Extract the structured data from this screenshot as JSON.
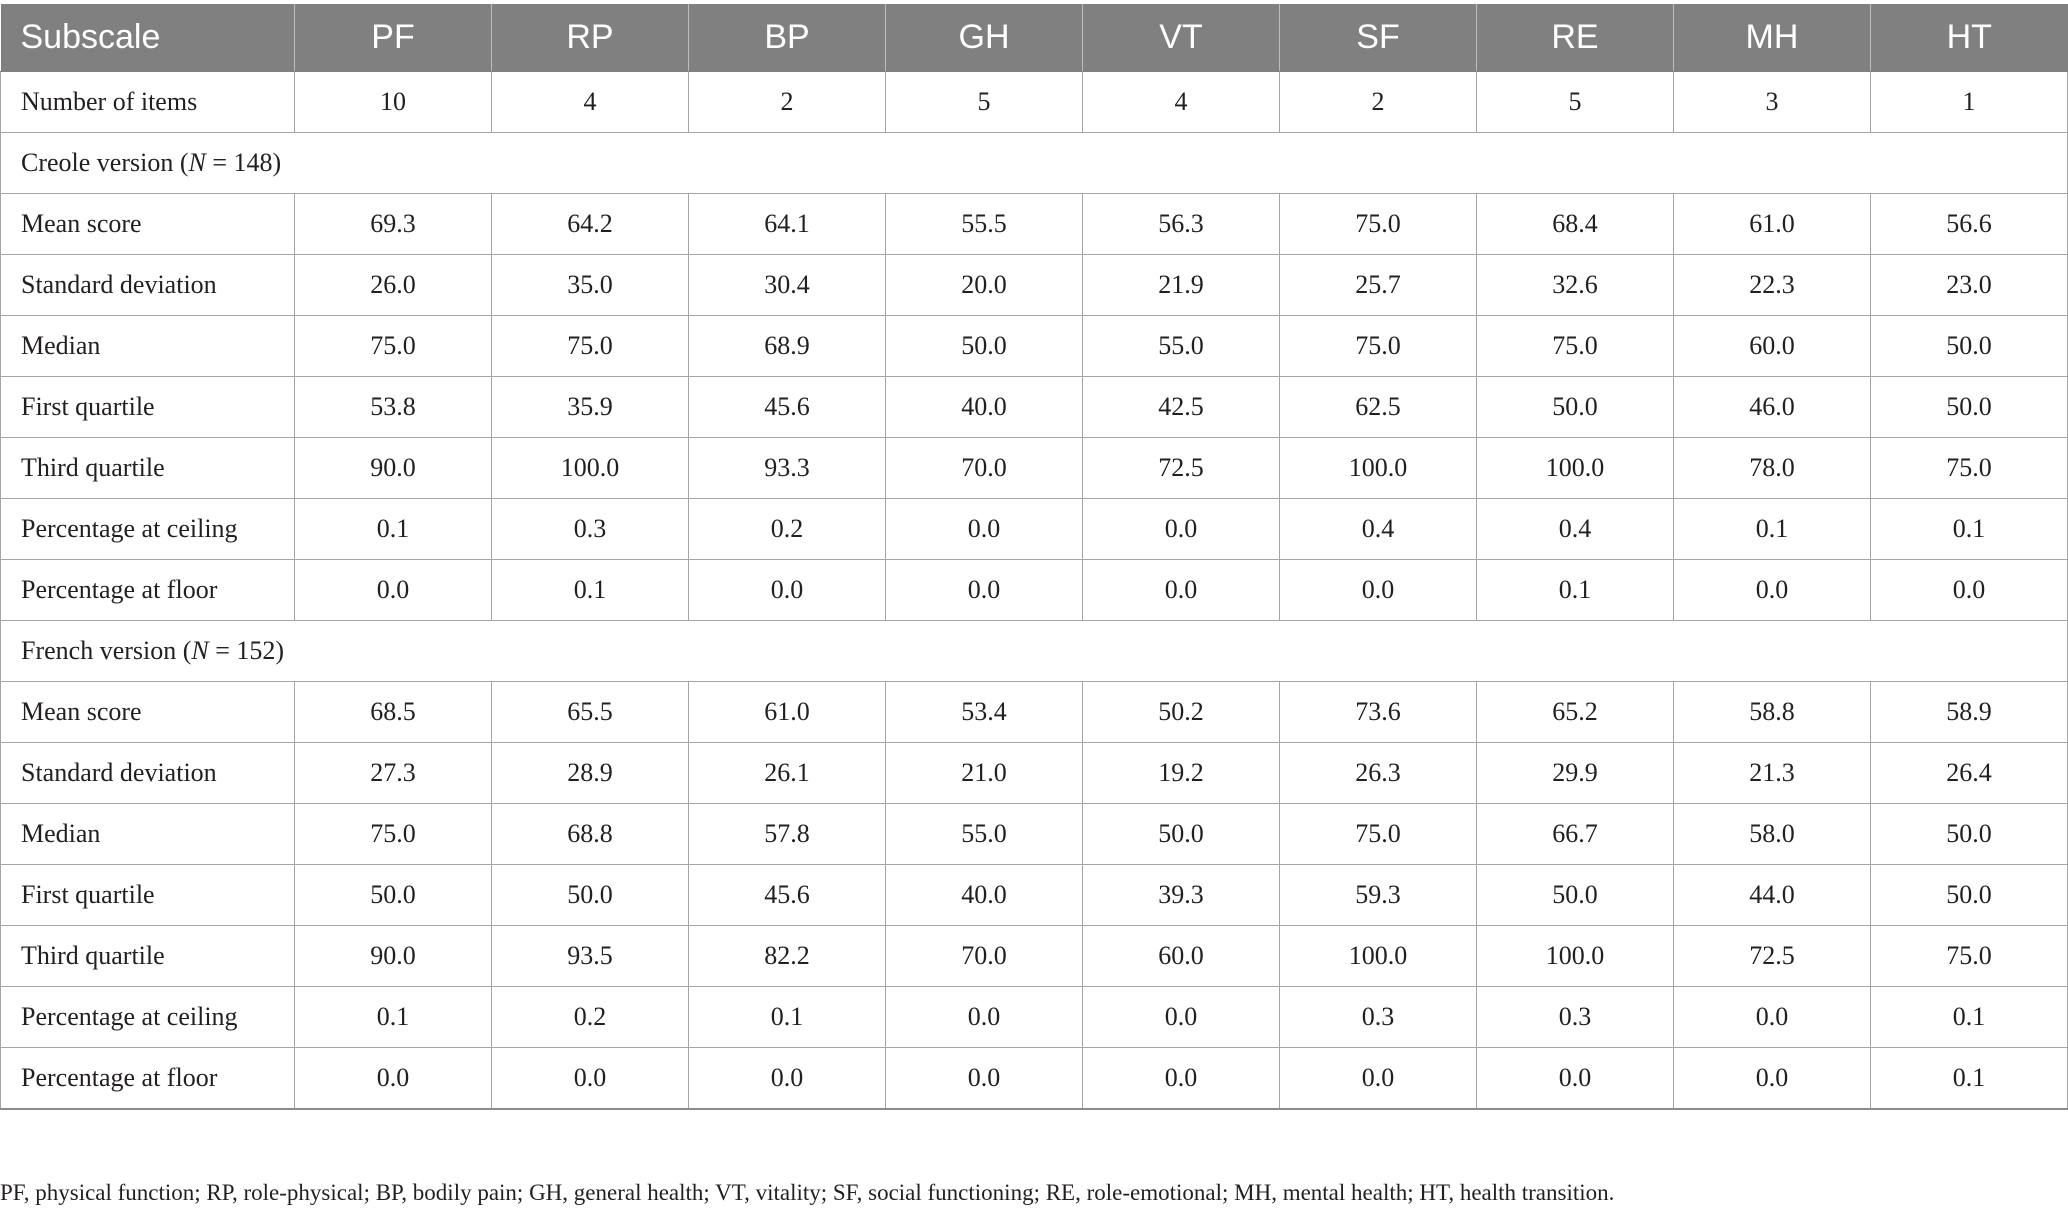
{
  "table": {
    "headers": [
      "Subscale",
      "PF",
      "RP",
      "BP",
      "GH",
      "VT",
      "SF",
      "RE",
      "MH",
      "HT"
    ],
    "items_row": {
      "label": "Number of items",
      "values": [
        "10",
        "4",
        "2",
        "5",
        "4",
        "2",
        "5",
        "3",
        "1"
      ]
    },
    "sections": [
      {
        "title_prefix": "Creole version (",
        "title_n_symbol": "N",
        "title_suffix": " = 148)",
        "rows": [
          {
            "label": "Mean score",
            "values": [
              "69.3",
              "64.2",
              "64.1",
              "55.5",
              "56.3",
              "75.0",
              "68.4",
              "61.0",
              "56.6"
            ]
          },
          {
            "label": "Standard deviation",
            "values": [
              "26.0",
              "35.0",
              "30.4",
              "20.0",
              "21.9",
              "25.7",
              "32.6",
              "22.3",
              "23.0"
            ]
          },
          {
            "label": "Median",
            "values": [
              "75.0",
              "75.0",
              "68.9",
              "50.0",
              "55.0",
              "75.0",
              "75.0",
              "60.0",
              "50.0"
            ]
          },
          {
            "label": "First quartile",
            "values": [
              "53.8",
              "35.9",
              "45.6",
              "40.0",
              "42.5",
              "62.5",
              "50.0",
              "46.0",
              "50.0"
            ]
          },
          {
            "label": "Third quartile",
            "values": [
              "90.0",
              "100.0",
              "93.3",
              "70.0",
              "72.5",
              "100.0",
              "100.0",
              "78.0",
              "75.0"
            ]
          },
          {
            "label": "Percentage at ceiling",
            "values": [
              "0.1",
              "0.3",
              "0.2",
              "0.0",
              "0.0",
              "0.4",
              "0.4",
              "0.1",
              "0.1"
            ]
          },
          {
            "label": "Percentage at floor",
            "values": [
              "0.0",
              "0.1",
              "0.0",
              "0.0",
              "0.0",
              "0.0",
              "0.1",
              "0.0",
              "0.0"
            ]
          }
        ]
      },
      {
        "title_prefix": "French version (",
        "title_n_symbol": "N",
        "title_suffix": " = 152)",
        "rows": [
          {
            "label": "Mean score",
            "values": [
              "68.5",
              "65.5",
              "61.0",
              "53.4",
              "50.2",
              "73.6",
              "65.2",
              "58.8",
              "58.9"
            ]
          },
          {
            "label": "Standard deviation",
            "values": [
              "27.3",
              "28.9",
              "26.1",
              "21.0",
              "19.2",
              "26.3",
              "29.9",
              "21.3",
              "26.4"
            ]
          },
          {
            "label": "Median",
            "values": [
              "75.0",
              "68.8",
              "57.8",
              "55.0",
              "50.0",
              "75.0",
              "66.7",
              "58.0",
              "50.0"
            ]
          },
          {
            "label": "First quartile",
            "values": [
              "50.0",
              "50.0",
              "45.6",
              "40.0",
              "39.3",
              "59.3",
              "50.0",
              "44.0",
              "50.0"
            ]
          },
          {
            "label": "Third quartile",
            "values": [
              "90.0",
              "93.5",
              "82.2",
              "70.0",
              "60.0",
              "100.0",
              "100.0",
              "72.5",
              "75.0"
            ]
          },
          {
            "label": "Percentage at ceiling",
            "values": [
              "0.1",
              "0.2",
              "0.1",
              "0.0",
              "0.0",
              "0.3",
              "0.3",
              "0.0",
              "0.1"
            ]
          },
          {
            "label": "Percentage at floor",
            "values": [
              "0.0",
              "0.0",
              "0.0",
              "0.0",
              "0.0",
              "0.0",
              "0.0",
              "0.0",
              "0.1"
            ]
          }
        ]
      }
    ]
  },
  "footnote": "PF, physical function; RP, role-physical; BP, bodily pain; GH, general health; VT, vitality; SF, social functioning; RE, role-emotional; MH, mental health; HT, health transition.",
  "colors": {
    "header_bg": "#808080",
    "header_text": "#ffffff",
    "grid_line": "#a6a6a6",
    "body_text": "#231f20"
  }
}
